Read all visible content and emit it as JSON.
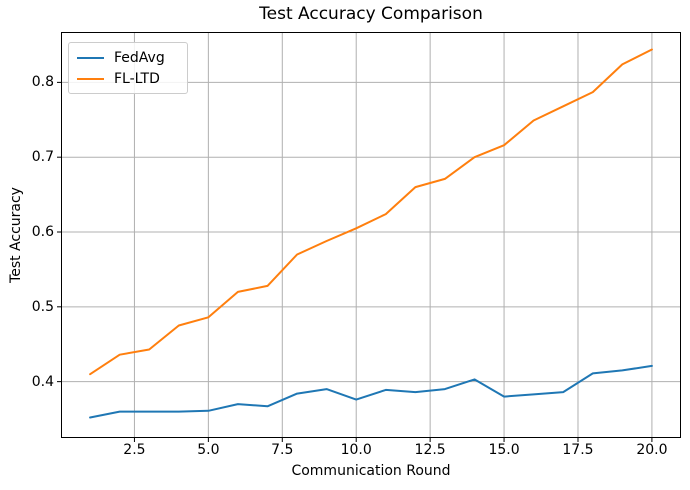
{
  "chart_data": {
    "type": "line",
    "title": "Test Accuracy Comparison",
    "xlabel": "Communication Round",
    "ylabel": "Test Accuracy",
    "x": [
      1,
      2,
      3,
      4,
      5,
      6,
      7,
      8,
      9,
      10,
      11,
      12,
      13,
      14,
      15,
      16,
      17,
      18,
      19,
      20
    ],
    "series": [
      {
        "name": "FedAvg",
        "color": "#1f77b4",
        "values": [
          0.352,
          0.36,
          0.36,
          0.36,
          0.361,
          0.37,
          0.367,
          0.384,
          0.39,
          0.376,
          0.389,
          0.386,
          0.39,
          0.403,
          0.38,
          0.383,
          0.386,
          0.411,
          0.415,
          0.421
        ]
      },
      {
        "name": "FL-LTD",
        "color": "#ff7f0e",
        "values": [
          0.41,
          0.436,
          0.443,
          0.475,
          0.486,
          0.52,
          0.528,
          0.57,
          0.588,
          0.605,
          0.624,
          0.66,
          0.671,
          0.7,
          0.716,
          0.749,
          0.768,
          0.787,
          0.824,
          0.844
        ]
      }
    ],
    "xticks": [
      2.5,
      5.0,
      7.5,
      10.0,
      12.5,
      15.0,
      17.5,
      20.0
    ],
    "xtick_labels": [
      "2.5",
      "5.0",
      "7.5",
      "10.0",
      "12.5",
      "15.0",
      "17.5",
      "20.0"
    ],
    "yticks": [
      0.4,
      0.5,
      0.6,
      0.7,
      0.8
    ],
    "ytick_labels": [
      "0.4",
      "0.5",
      "0.6",
      "0.7",
      "0.8"
    ],
    "xlim": [
      0.05,
      20.95
    ],
    "ylim": [
      0.326,
      0.866
    ],
    "grid": true,
    "legend_position": "upper-left",
    "colors": {
      "grid": "#b0b0b0",
      "spine": "#000000",
      "tick": "#000000",
      "background": "#ffffff",
      "text": "#000000"
    }
  }
}
